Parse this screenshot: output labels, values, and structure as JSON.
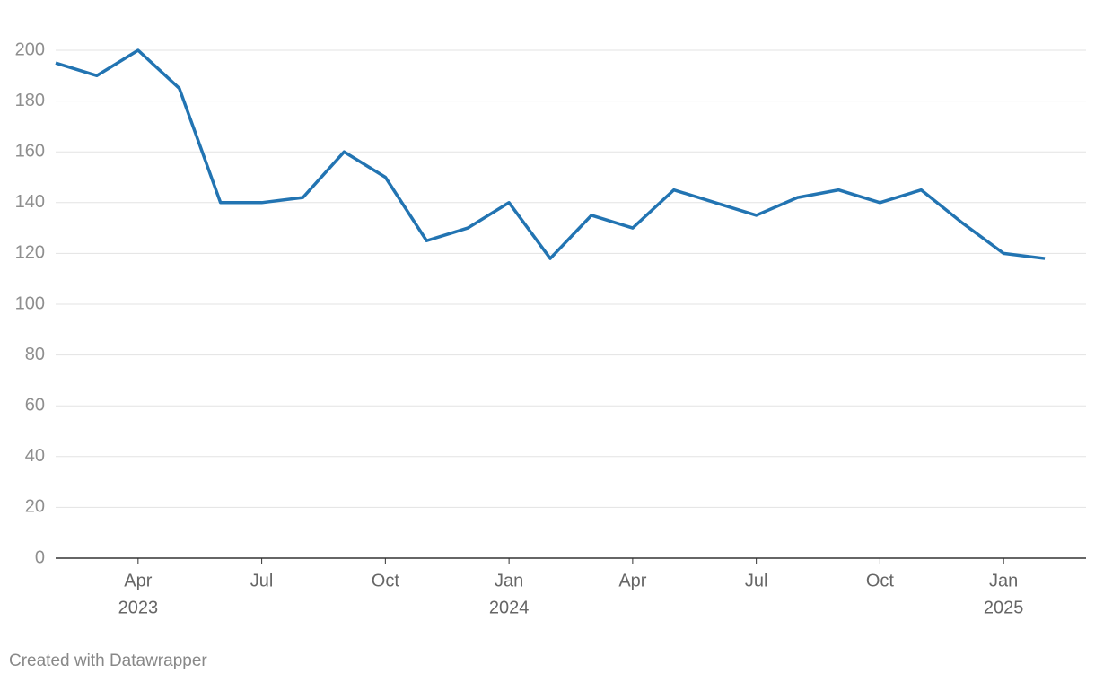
{
  "chart_data": {
    "type": "line",
    "x": [
      "2023-02",
      "2023-03",
      "2023-04",
      "2023-05",
      "2023-06",
      "2023-07",
      "2023-08",
      "2023-09",
      "2023-10",
      "2023-11",
      "2023-12",
      "2024-01",
      "2024-02",
      "2024-03",
      "2024-04",
      "2024-05",
      "2024-06",
      "2024-07",
      "2024-08",
      "2024-09",
      "2024-10",
      "2024-11",
      "2024-12",
      "2025-01",
      "2025-02"
    ],
    "series": [
      {
        "color": "#2274b2",
        "values": [
          195,
          190,
          200,
          185,
          140,
          140,
          142,
          160,
          150,
          125,
          130,
          140,
          118,
          135,
          130,
          145,
          140,
          135,
          142,
          145,
          140,
          145,
          132,
          120,
          118
        ]
      }
    ],
    "xlim": [
      "2023-02",
      "2025-03"
    ],
    "xticks": [
      {
        "value": "2023-04",
        "label": [
          "Apr",
          "2023"
        ]
      },
      {
        "value": "2023-07",
        "label": [
          "Jul"
        ]
      },
      {
        "value": "2023-10",
        "label": [
          "Oct"
        ]
      },
      {
        "value": "2024-01",
        "label": [
          "Jan",
          "2024"
        ]
      },
      {
        "value": "2024-04",
        "label": [
          "Apr"
        ]
      },
      {
        "value": "2024-07",
        "label": [
          "Jul"
        ]
      },
      {
        "value": "2024-10",
        "label": [
          "Oct"
        ]
      },
      {
        "value": "2025-01",
        "label": [
          "Jan",
          "2025"
        ]
      }
    ],
    "ylim": [
      0,
      200
    ],
    "yticks": [
      0,
      20,
      40,
      60,
      80,
      100,
      120,
      140,
      160,
      180,
      200
    ],
    "grid": true,
    "footer": "Created with Datawrapper"
  }
}
